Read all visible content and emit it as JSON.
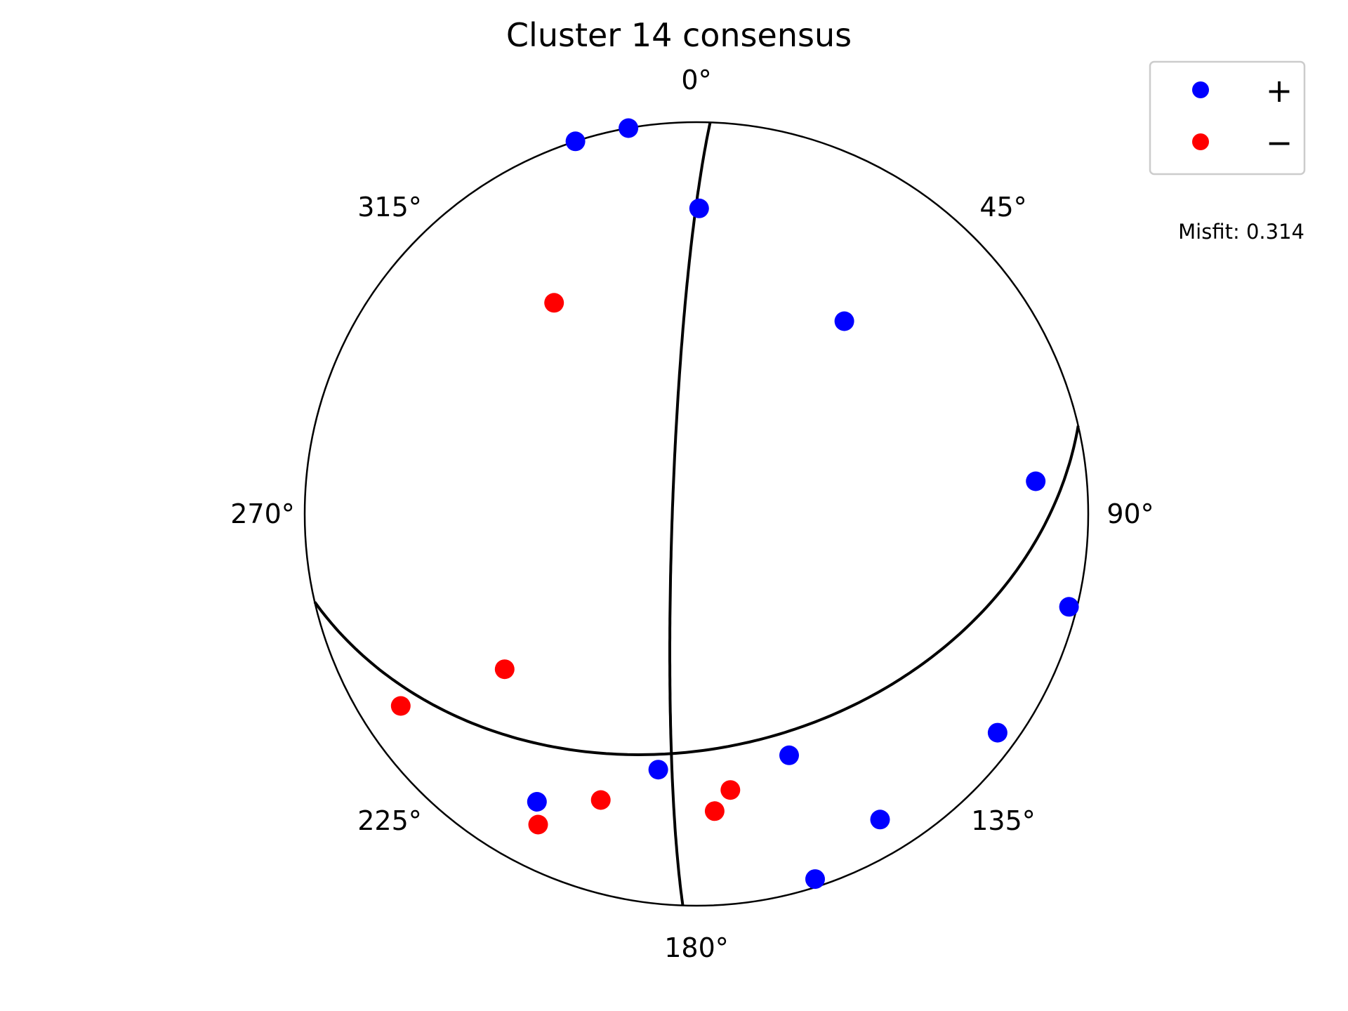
{
  "chart_data": {
    "type": "scatter",
    "subtype": "focal-mechanism-stereonet",
    "title": "Cluster 14 consensus",
    "azimuth_labels": [
      "0°",
      "45°",
      "90°",
      "135°",
      "180°",
      "225°",
      "270°",
      "315°"
    ],
    "legend": {
      "placement": "top-right",
      "entries": [
        {
          "symbol": "+",
          "color": "#0000ff"
        },
        {
          "symbol": "−",
          "color": "#ff0000"
        }
      ]
    },
    "annotation": "Misfit: 0.314",
    "nodal_planes": [
      {
        "strike": 182,
        "dip": 85
      },
      {
        "strike": 77,
        "dip": 40
      }
    ],
    "series": [
      {
        "polarity": "+",
        "color": "#0000ff",
        "points": [
          {
            "azimuth": 342,
            "radius": 1.0
          },
          {
            "azimuth": 350,
            "radius": 1.0
          },
          {
            "azimuth": 0.5,
            "radius": 0.78
          },
          {
            "azimuth": 37.5,
            "radius": 0.62
          },
          {
            "azimuth": 84.5,
            "radius": 0.87
          },
          {
            "azimuth": 104,
            "radius": 0.98
          },
          {
            "azimuth": 159,
            "radius": 0.66
          },
          {
            "azimuth": 149,
            "radius": 0.91
          },
          {
            "azimuth": 126,
            "radius": 0.95
          },
          {
            "azimuth": 188.5,
            "radius": 0.66
          },
          {
            "azimuth": 209,
            "radius": 0.84
          },
          {
            "azimuth": 162,
            "radius": 0.98
          }
        ]
      },
      {
        "polarity": "−",
        "color": "#ff0000",
        "points": [
          {
            "azimuth": 326,
            "radius": 0.65
          },
          {
            "azimuth": 237,
            "radius": 0.9
          },
          {
            "azimuth": 231,
            "radius": 0.63
          },
          {
            "azimuth": 198.5,
            "radius": 0.77
          },
          {
            "azimuth": 176.5,
            "radius": 0.76
          },
          {
            "azimuth": 173,
            "radius": 0.71
          },
          {
            "azimuth": 207,
            "radius": 0.89
          }
        ]
      }
    ]
  }
}
